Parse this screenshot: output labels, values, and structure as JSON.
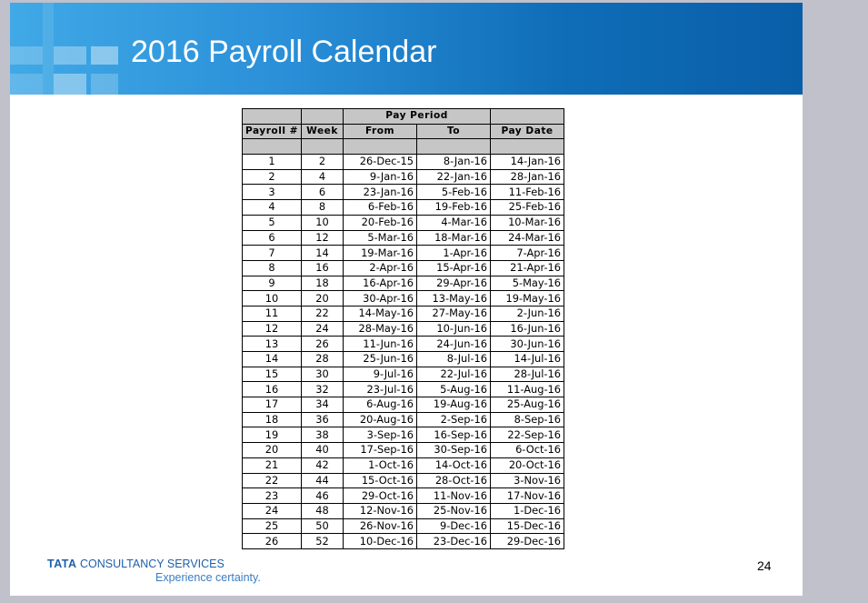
{
  "slide": {
    "title": "2016 Payroll Calendar",
    "page_number": "24",
    "footer": {
      "brand_bold": "TATA",
      "brand_rest": " CONSULTANCY SERVICES",
      "tagline": "Experience certainty."
    }
  },
  "table": {
    "group_header": "Pay Period",
    "headers": {
      "payroll": "Payroll #",
      "week": "Week",
      "from": "From",
      "to": "To",
      "pay_date": "Pay Date"
    },
    "rows": [
      [
        "1",
        "2",
        "26-Dec-15",
        "8-Jan-16",
        "14-Jan-16"
      ],
      [
        "2",
        "4",
        "9-Jan-16",
        "22-Jan-16",
        "28-Jan-16"
      ],
      [
        "3",
        "6",
        "23-Jan-16",
        "5-Feb-16",
        "11-Feb-16"
      ],
      [
        "4",
        "8",
        "6-Feb-16",
        "19-Feb-16",
        "25-Feb-16"
      ],
      [
        "5",
        "10",
        "20-Feb-16",
        "4-Mar-16",
        "10-Mar-16"
      ],
      [
        "6",
        "12",
        "5-Mar-16",
        "18-Mar-16",
        "24-Mar-16"
      ],
      [
        "7",
        "14",
        "19-Mar-16",
        "1-Apr-16",
        "7-Apr-16"
      ],
      [
        "8",
        "16",
        "2-Apr-16",
        "15-Apr-16",
        "21-Apr-16"
      ],
      [
        "9",
        "18",
        "16-Apr-16",
        "29-Apr-16",
        "5-May-16"
      ],
      [
        "10",
        "20",
        "30-Apr-16",
        "13-May-16",
        "19-May-16"
      ],
      [
        "11",
        "22",
        "14-May-16",
        "27-May-16",
        "2-Jun-16"
      ],
      [
        "12",
        "24",
        "28-May-16",
        "10-Jun-16",
        "16-Jun-16"
      ],
      [
        "13",
        "26",
        "11-Jun-16",
        "24-Jun-16",
        "30-Jun-16"
      ],
      [
        "14",
        "28",
        "25-Jun-16",
        "8-Jul-16",
        "14-Jul-16"
      ],
      [
        "15",
        "30",
        "9-Jul-16",
        "22-Jul-16",
        "28-Jul-16"
      ],
      [
        "16",
        "32",
        "23-Jul-16",
        "5-Aug-16",
        "11-Aug-16"
      ],
      [
        "17",
        "34",
        "6-Aug-16",
        "19-Aug-16",
        "25-Aug-16"
      ],
      [
        "18",
        "36",
        "20-Aug-16",
        "2-Sep-16",
        "8-Sep-16"
      ],
      [
        "19",
        "38",
        "3-Sep-16",
        "16-Sep-16",
        "22-Sep-16"
      ],
      [
        "20",
        "40",
        "17-Sep-16",
        "30-Sep-16",
        "6-Oct-16"
      ],
      [
        "21",
        "42",
        "1-Oct-16",
        "14-Oct-16",
        "20-Oct-16"
      ],
      [
        "22",
        "44",
        "15-Oct-16",
        "28-Oct-16",
        "3-Nov-16"
      ],
      [
        "23",
        "46",
        "29-Oct-16",
        "11-Nov-16",
        "17-Nov-16"
      ],
      [
        "24",
        "48",
        "12-Nov-16",
        "25-Nov-16",
        "1-Dec-16"
      ],
      [
        "25",
        "50",
        "26-Nov-16",
        "9-Dec-16",
        "15-Dec-16"
      ],
      [
        "26",
        "52",
        "10-Dec-16",
        "23-Dec-16",
        "29-Dec-16"
      ]
    ]
  },
  "colors": {
    "banner_left": "#40a9e6",
    "banner_right": "#0a5ea8",
    "header_fill": "#c6c6c6",
    "brand_blue": "#1f5fa8",
    "background": "#c0c1ca"
  }
}
